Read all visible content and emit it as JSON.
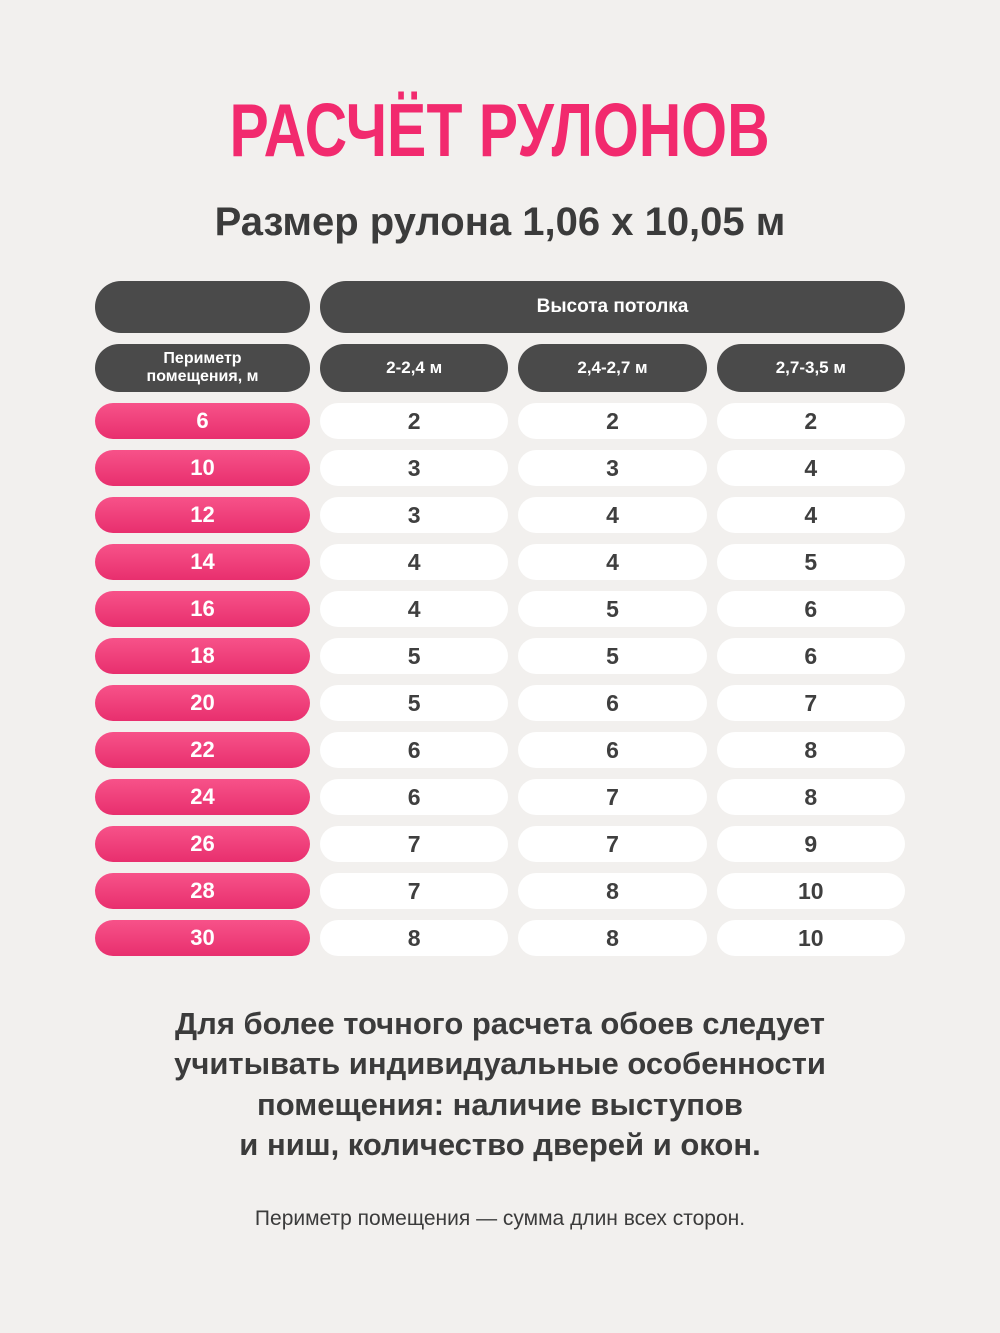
{
  "page": {
    "title": "РАСЧЁТ РУЛОНОВ",
    "subtitle": "Размер рулона 1,06 х 10,05 м"
  },
  "table": {
    "span_header": "Высота потолка",
    "corner_label": "Периметр помещения, м",
    "corner_label_lines": [
      "Периметр",
      "помещения, м"
    ],
    "column_headers": [
      "2-2,4 м",
      "2,4-2,7 м",
      "2,7-3,5 м"
    ],
    "rows": [
      {
        "perimeter": "6",
        "values": [
          "2",
          "2",
          "2"
        ]
      },
      {
        "perimeter": "10",
        "values": [
          "3",
          "3",
          "4"
        ]
      },
      {
        "perimeter": "12",
        "values": [
          "3",
          "4",
          "4"
        ]
      },
      {
        "perimeter": "14",
        "values": [
          "4",
          "4",
          "5"
        ]
      },
      {
        "perimeter": "16",
        "values": [
          "4",
          "5",
          "6"
        ]
      },
      {
        "perimeter": "18",
        "values": [
          "5",
          "5",
          "6"
        ]
      },
      {
        "perimeter": "20",
        "values": [
          "5",
          "6",
          "7"
        ]
      },
      {
        "perimeter": "22",
        "values": [
          "6",
          "6",
          "8"
        ]
      },
      {
        "perimeter": "24",
        "values": [
          "6",
          "7",
          "8"
        ]
      },
      {
        "perimeter": "26",
        "values": [
          "7",
          "7",
          "9"
        ]
      },
      {
        "perimeter": "28",
        "values": [
          "7",
          "8",
          "10"
        ]
      },
      {
        "perimeter": "30",
        "values": [
          "8",
          "8",
          "10"
        ]
      }
    ]
  },
  "footer": {
    "note_lines": [
      "Для более точного расчета обоев следует",
      "учитывать индивидуальные особенности",
      "помещения: наличие выступов",
      "и ниш, количество дверей и окон."
    ],
    "hint": "Периметр помещения — сумма длин всех сторон."
  },
  "colors": {
    "bg": "#f2f0ee",
    "title-pink": "#f22a6e",
    "dark-pill": "#4a4a4a",
    "pink-pill-top": "#f75289",
    "pink-pill-bottom": "#e82f6e",
    "text-dark": "#3b3b3b",
    "white-pill": "#ffffff"
  },
  "chart_data": {
    "type": "table",
    "title": "РАСЧЁТ РУЛОНОВ",
    "subtitle": "Размер рулона 1,06 х 10,05 м",
    "column_group_header": "Высота потолка",
    "row_header": "Периметр помещения, м",
    "columns": [
      "2-2,4 м",
      "2,4-2,7 м",
      "2,7-3,5 м"
    ],
    "perimeters": [
      6,
      10,
      12,
      14,
      16,
      18,
      20,
      22,
      24,
      26,
      28,
      30
    ],
    "rolls": [
      [
        2,
        2,
        2
      ],
      [
        3,
        3,
        4
      ],
      [
        3,
        4,
        4
      ],
      [
        4,
        4,
        5
      ],
      [
        4,
        5,
        6
      ],
      [
        5,
        5,
        6
      ],
      [
        5,
        6,
        7
      ],
      [
        6,
        6,
        8
      ],
      [
        6,
        7,
        8
      ],
      [
        7,
        7,
        9
      ],
      [
        7,
        8,
        10
      ],
      [
        8,
        8,
        10
      ]
    ],
    "notes": [
      "Для более точного расчета обоев следует учитывать индивидуальные особенности помещения: наличие выступов и ниш, количество дверей и окон.",
      "Периметр помещения — сумма длин всех сторон."
    ]
  }
}
